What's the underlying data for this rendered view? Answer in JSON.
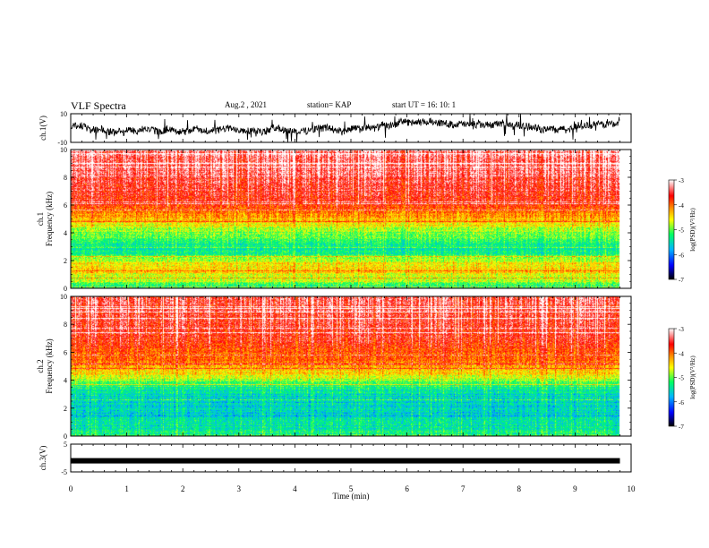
{
  "header": {
    "title": "VLF Spectra",
    "date": "Aug.2 , 2021",
    "station": "station= KAP",
    "start_ut": "start UT = 16: 10: 1"
  },
  "panels": {
    "ch1_wave_label": "ch.1(V)",
    "ch1_spec_label": "ch.1\nFrequency (kHz)",
    "ch2_spec_label": "ch.2\nFrequency (kHz)",
    "ch3_wave_label": "ch.3(V)",
    "colorbar_label": "log(PSD)(V²/Hz)"
  },
  "colors": {
    "background": "#ffffff",
    "trace": "#000000",
    "colormap": [
      "#000000",
      "#0000ff",
      "#00b4ff",
      "#00ff64",
      "#ffff00",
      "#ff8c00",
      "#ff0000",
      "#ffffff"
    ]
  },
  "chart_data": [
    {
      "type": "line",
      "name": "ch1-waveform",
      "ylabel": "ch.1(V)",
      "ylim": [
        -10,
        10
      ],
      "yticks": [
        "10",
        "-10"
      ],
      "xlim": [
        0,
        10
      ],
      "data_end_min": 9.8,
      "description_values": {
        "mean": 1.5,
        "min": -10,
        "max": 10
      }
    },
    {
      "type": "heatmap",
      "name": "ch1-spectrogram",
      "ylabel": "Frequency (kHz)",
      "channel": "ch.1",
      "ylim": [
        0,
        10
      ],
      "yticks": [
        "0",
        "2",
        "4",
        "6",
        "8",
        "10"
      ],
      "xlim": [
        0,
        10
      ],
      "colorbar": {
        "label": "log(PSD)(V²/Hz)",
        "ticks": [
          "-3",
          "-4",
          "-5",
          "-6",
          "-7"
        ],
        "range": [
          -7,
          -3
        ]
      },
      "level_profile_khz": [
        [
          0.0,
          -5.6
        ],
        [
          0.5,
          -4.8
        ],
        [
          1.0,
          -4.6
        ],
        [
          1.5,
          -4.4
        ],
        [
          2.0,
          -4.7
        ],
        [
          2.5,
          -5.3
        ],
        [
          3.0,
          -5.4
        ],
        [
          3.5,
          -5.2
        ],
        [
          4.0,
          -5.0
        ],
        [
          4.5,
          -4.6
        ],
        [
          5.0,
          -4.4
        ],
        [
          5.5,
          -4.1
        ],
        [
          6.0,
          -3.9
        ],
        [
          7.0,
          -3.6
        ],
        [
          8.0,
          -3.5
        ],
        [
          9.0,
          -3.4
        ],
        [
          10.0,
          -3.3
        ]
      ]
    },
    {
      "type": "heatmap",
      "name": "ch2-spectrogram",
      "ylabel": "Frequency (kHz)",
      "channel": "ch.2",
      "ylim": [
        0,
        10
      ],
      "yticks": [
        "0",
        "2",
        "4",
        "6",
        "8",
        "10"
      ],
      "xlim": [
        0,
        10
      ],
      "colorbar": {
        "label": "log(PSD)(V²/Hz)",
        "ticks": [
          "-3",
          "-4",
          "-5",
          "-6",
          "-7"
        ],
        "range": [
          -7,
          -3
        ]
      },
      "level_profile_khz": [
        [
          0.0,
          -5.2
        ],
        [
          0.5,
          -5.4
        ],
        [
          1.0,
          -5.5
        ],
        [
          1.5,
          -5.6
        ],
        [
          2.0,
          -5.5
        ],
        [
          2.5,
          -5.6
        ],
        [
          3.0,
          -5.5
        ],
        [
          3.5,
          -5.3
        ],
        [
          4.0,
          -4.9
        ],
        [
          4.5,
          -4.5
        ],
        [
          5.0,
          -4.2
        ],
        [
          5.5,
          -4.0
        ],
        [
          6.0,
          -3.9
        ],
        [
          7.0,
          -3.7
        ],
        [
          8.0,
          -3.6
        ],
        [
          9.0,
          -3.5
        ],
        [
          10.0,
          -3.4
        ]
      ]
    },
    {
      "type": "line",
      "name": "ch3-waveform",
      "ylabel": "ch.3(V)",
      "ylim": [
        -5,
        5
      ],
      "yticks": [
        "5",
        "-5"
      ],
      "xlim": [
        0,
        10
      ],
      "data_end_min": 9.8,
      "description_values": {
        "mean": -1.0
      }
    }
  ],
  "xaxis": {
    "label": "Time (min)",
    "ticks": [
      "0",
      "1",
      "2",
      "3",
      "4",
      "5",
      "6",
      "7",
      "8",
      "9",
      "10"
    ],
    "range": [
      0,
      10
    ]
  }
}
